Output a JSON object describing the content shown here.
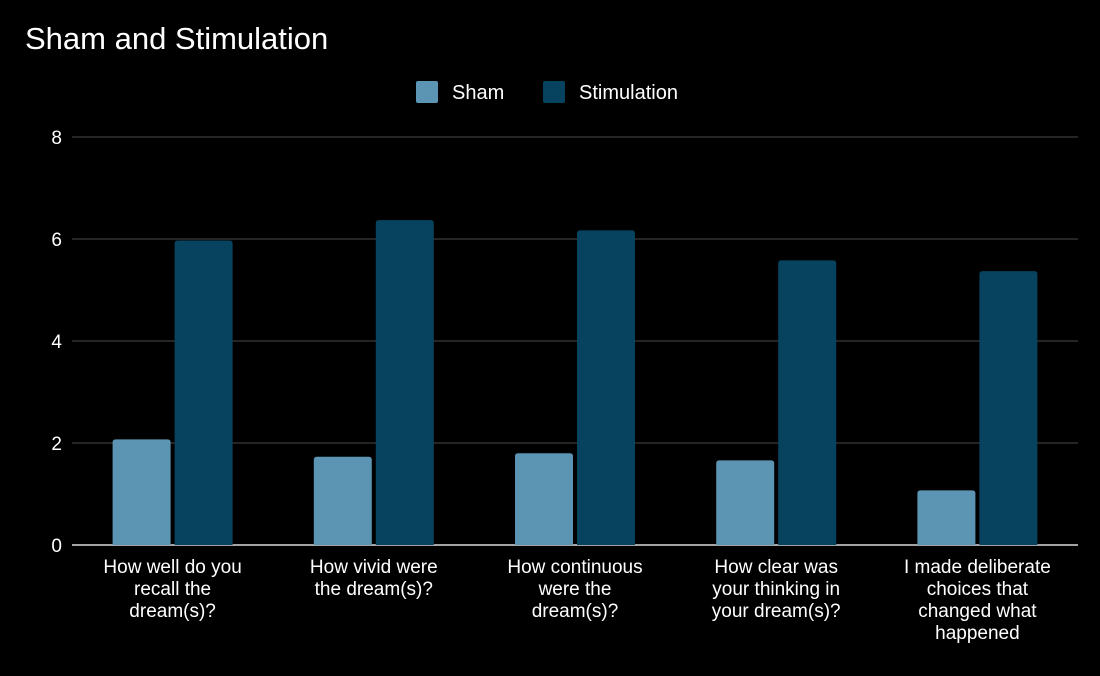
{
  "chart_data": {
    "type": "bar",
    "title": "Sham and Stimulation",
    "xlabel": "",
    "ylabel": "",
    "ylim": [
      0,
      8
    ],
    "yticks": [
      "0",
      "2",
      "4",
      "6",
      "8"
    ],
    "grid": true,
    "legend_position": "top-center",
    "categories": [
      [
        "How well do you",
        "recall the",
        "dream(s)?"
      ],
      [
        "How vivid were",
        "the dream(s)?"
      ],
      [
        "How continuous",
        "were the",
        "dream(s)?"
      ],
      [
        "How clear was",
        "your thinking in",
        "your dream(s)?"
      ],
      [
        "I made deliberate",
        "choices that",
        "changed what",
        "happened"
      ]
    ],
    "series": [
      {
        "name": "Sham",
        "color": "#5b95b3",
        "values": [
          2.07,
          1.73,
          1.8,
          1.66,
          1.07
        ]
      },
      {
        "name": "Stimulation",
        "color": "#07435f",
        "values": [
          5.97,
          6.37,
          6.17,
          5.58,
          5.37
        ]
      }
    ]
  }
}
